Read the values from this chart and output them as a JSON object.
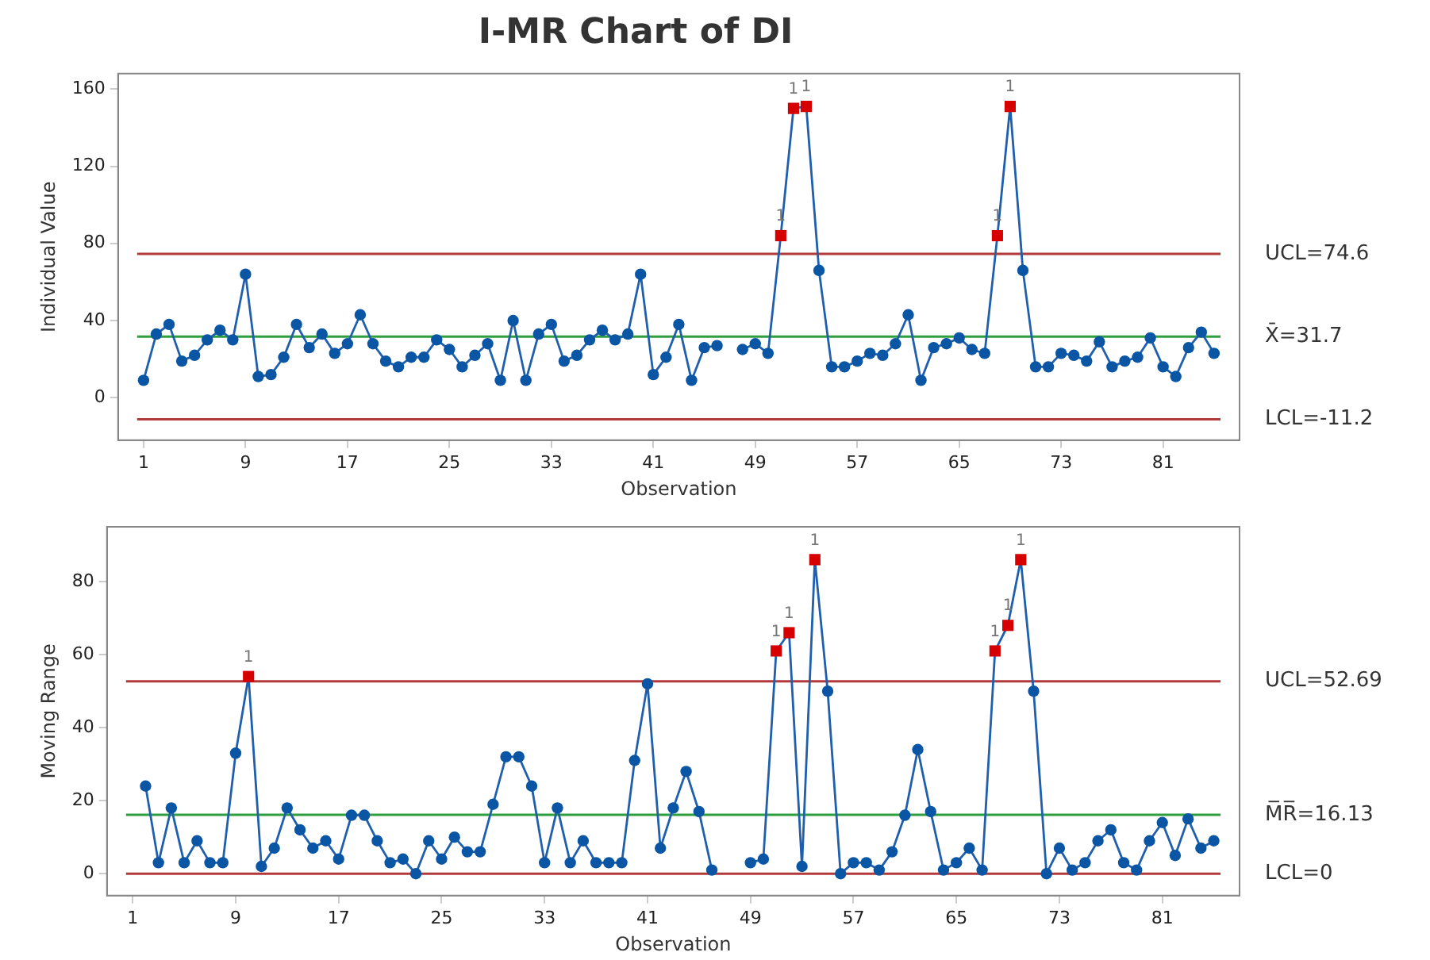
{
  "chart_data": [
    {
      "type": "line",
      "title": "I-MR Chart of DI",
      "xlabel": "Observation",
      "ylabel": "Individual Value",
      "x": [
        1,
        2,
        3,
        4,
        5,
        6,
        7,
        8,
        9,
        10,
        11,
        12,
        13,
        14,
        15,
        16,
        17,
        18,
        19,
        20,
        21,
        22,
        23,
        24,
        25,
        26,
        27,
        28,
        29,
        30,
        31,
        32,
        33,
        34,
        35,
        36,
        37,
        38,
        39,
        40,
        41,
        42,
        43,
        44,
        45,
        46,
        47,
        48,
        49,
        50,
        51,
        52,
        53,
        54,
        55,
        56,
        57,
        58,
        59,
        60,
        61,
        62,
        63,
        64,
        65,
        66,
        67,
        68,
        69,
        70,
        71,
        72,
        73,
        74,
        75,
        76,
        77,
        78,
        79,
        80,
        81,
        82,
        83,
        84,
        85
      ],
      "series": [
        {
          "type": "line",
          "color": "#1f5fad",
          "marker": "none",
          "line_style": "solid",
          "values": [
            9,
            33,
            38,
            19,
            22,
            30,
            35,
            30,
            64,
            11,
            12,
            21,
            38,
            26,
            33,
            23,
            28,
            43,
            28,
            19,
            16,
            21,
            21,
            30,
            25,
            16,
            22,
            28,
            9,
            40,
            9,
            33,
            38,
            19,
            22,
            30,
            35,
            30,
            33,
            64,
            12,
            21,
            38,
            9,
            26,
            27,
            null,
            25,
            28,
            23,
            84,
            150,
            151,
            66,
            16,
            16,
            19,
            23,
            22,
            28,
            43,
            9,
            26,
            28,
            31,
            25,
            23,
            84,
            151,
            66,
            16,
            16,
            23,
            22,
            19,
            29,
            16,
            19,
            21,
            31,
            16,
            11,
            26,
            34,
            23
          ]
        },
        {
          "type": "scatter",
          "color": "#0b56a4",
          "marker": "circle",
          "x": [
            1,
            2,
            3,
            4,
            5,
            6,
            7,
            8,
            9,
            10,
            11,
            12,
            13,
            14,
            15,
            16,
            17,
            18,
            19,
            20,
            21,
            22,
            23,
            24,
            25,
            26,
            27,
            28,
            29,
            30,
            31,
            32,
            33,
            34,
            35,
            36,
            37,
            38,
            39,
            40,
            41,
            42,
            43,
            44,
            45,
            46,
            48,
            49,
            50,
            54,
            55,
            56,
            57,
            58,
            59,
            60,
            61,
            62,
            63,
            64,
            65,
            66,
            67,
            70,
            71,
            72,
            73,
            74,
            75,
            76,
            77,
            78,
            79,
            80,
            81,
            82,
            83,
            84,
            85
          ],
          "values": [
            9,
            33,
            38,
            19,
            22,
            30,
            35,
            30,
            64,
            11,
            12,
            21,
            38,
            26,
            33,
            23,
            28,
            43,
            28,
            19,
            16,
            21,
            21,
            30,
            25,
            16,
            22,
            28,
            9,
            40,
            9,
            33,
            38,
            19,
            22,
            30,
            35,
            30,
            33,
            64,
            12,
            21,
            38,
            9,
            26,
            27,
            25,
            28,
            23,
            66,
            16,
            16,
            19,
            23,
            22,
            28,
            43,
            9,
            26,
            28,
            31,
            25,
            23,
            66,
            16,
            16,
            23,
            22,
            19,
            29,
            16,
            19,
            21,
            31,
            16,
            11,
            26,
            34,
            23
          ]
        },
        {
          "type": "scatter",
          "color": "#d60000",
          "marker": "square",
          "x": [
            51,
            52,
            53,
            68,
            69
          ],
          "values": [
            84,
            150,
            151,
            84,
            151
          ]
        }
      ],
      "xlim": [
        -1,
        87
      ],
      "xticks": [
        1,
        9,
        17,
        25,
        33,
        41,
        49,
        57,
        65,
        73,
        81
      ],
      "ylim": [
        -22,
        168
      ],
      "yticks": [
        0,
        40,
        80,
        120,
        160
      ],
      "ref_lines": [
        {
          "axis": "y",
          "value": 74.6,
          "label": "UCL=74.6",
          "color": "#b33a3a"
        },
        {
          "axis": "y",
          "value": 31.7,
          "label": "X̄=31.7",
          "color": "#2e9e3e"
        },
        {
          "axis": "y",
          "value": -11.2,
          "label": "LCL=-11.2",
          "color": "#b33a3a"
        }
      ],
      "annotations": [
        {
          "text": "1",
          "x": 51,
          "y": 84
        },
        {
          "text": "1",
          "x": 52,
          "y": 150
        },
        {
          "text": "1",
          "x": 53,
          "y": 151
        },
        {
          "text": "1",
          "x": 68,
          "y": 84
        },
        {
          "text": "1",
          "x": 69,
          "y": 151
        }
      ],
      "grid": false,
      "legend": false
    },
    {
      "type": "line",
      "xlabel": "Observation",
      "ylabel": "Moving Range",
      "x": [
        2,
        3,
        4,
        5,
        6,
        7,
        8,
        9,
        10,
        11,
        12,
        13,
        14,
        15,
        16,
        17,
        18,
        19,
        20,
        21,
        22,
        23,
        24,
        25,
        26,
        27,
        28,
        29,
        30,
        31,
        32,
        33,
        34,
        35,
        36,
        37,
        38,
        39,
        40,
        41,
        42,
        43,
        44,
        45,
        46,
        47,
        48,
        49,
        50,
        51,
        52,
        53,
        54,
        55,
        56,
        57,
        58,
        59,
        60,
        61,
        62,
        63,
        64,
        65,
        66,
        67,
        68,
        69,
        70,
        71,
        72,
        73,
        74,
        75,
        76,
        77,
        78,
        79,
        80,
        81,
        82,
        83,
        84,
        85
      ],
      "series": [
        {
          "type": "line",
          "color": "#1f5fad",
          "marker": "none",
          "line_style": "solid",
          "values": [
            24,
            3,
            18,
            3,
            9,
            3,
            3,
            33,
            54,
            2,
            7,
            18,
            12,
            7,
            9,
            4,
            16,
            16,
            9,
            3,
            4,
            0,
            9,
            4,
            10,
            6,
            6,
            19,
            32,
            32,
            24,
            3,
            18,
            3,
            9,
            3,
            3,
            3,
            31,
            52,
            7,
            18,
            28,
            17,
            1,
            null,
            null,
            3,
            4,
            61,
            66,
            2,
            86,
            50,
            0,
            3,
            3,
            1,
            6,
            16,
            34,
            17,
            1,
            3,
            7,
            1,
            61,
            68,
            86,
            50,
            0,
            7,
            1,
            3,
            9,
            12,
            3,
            1,
            9,
            14,
            5,
            15,
            7,
            9
          ]
        },
        {
          "type": "scatter",
          "color": "#0b56a4",
          "marker": "circle",
          "x": [
            2,
            3,
            4,
            5,
            6,
            7,
            8,
            9,
            11,
            12,
            13,
            14,
            15,
            16,
            17,
            18,
            19,
            20,
            21,
            22,
            23,
            24,
            25,
            26,
            27,
            28,
            29,
            30,
            31,
            32,
            33,
            34,
            35,
            36,
            37,
            38,
            39,
            40,
            41,
            42,
            43,
            44,
            45,
            46,
            49,
            50,
            53,
            55,
            56,
            57,
            58,
            59,
            60,
            61,
            62,
            63,
            64,
            65,
            66,
            67,
            71,
            72,
            73,
            74,
            75,
            76,
            77,
            78,
            79,
            80,
            81,
            82,
            83,
            84,
            85
          ],
          "values": [
            24,
            3,
            18,
            3,
            9,
            3,
            3,
            33,
            2,
            7,
            18,
            12,
            7,
            9,
            4,
            16,
            16,
            9,
            3,
            4,
            0,
            9,
            4,
            10,
            6,
            6,
            19,
            32,
            32,
            24,
            3,
            18,
            3,
            9,
            3,
            3,
            3,
            31,
            52,
            7,
            18,
            28,
            17,
            1,
            3,
            4,
            2,
            50,
            0,
            3,
            3,
            1,
            6,
            16,
            34,
            17,
            1,
            3,
            7,
            1,
            50,
            0,
            7,
            1,
            3,
            9,
            12,
            3,
            1,
            9,
            14,
            5,
            15,
            7,
            9
          ]
        },
        {
          "type": "scatter",
          "color": "#d60000",
          "marker": "square",
          "x": [
            10,
            51,
            52,
            54,
            68,
            69,
            70
          ],
          "values": [
            54,
            61,
            66,
            86,
            61,
            68,
            86
          ]
        }
      ],
      "xlim": [
        -1,
        87
      ],
      "xticks": [
        1,
        9,
        17,
        25,
        33,
        41,
        49,
        57,
        65,
        73,
        81
      ],
      "ylim": [
        -6,
        95
      ],
      "yticks": [
        0,
        20,
        40,
        60,
        80
      ],
      "ref_lines": [
        {
          "axis": "y",
          "value": 52.69,
          "label": "UCL=52.69",
          "color": "#b33a3a"
        },
        {
          "axis": "y",
          "value": 16.13,
          "label": "M̅R̅=16.13",
          "color": "#2e9e3e"
        },
        {
          "axis": "y",
          "value": 0,
          "label": "LCL=0",
          "color": "#b33a3a"
        }
      ],
      "annotations": [
        {
          "text": "1",
          "x": 10,
          "y": 54
        },
        {
          "text": "1",
          "x": 51,
          "y": 61
        },
        {
          "text": "1",
          "x": 52,
          "y": 66
        },
        {
          "text": "1",
          "x": 54,
          "y": 86
        },
        {
          "text": "1",
          "x": 68,
          "y": 61
        },
        {
          "text": "1",
          "x": 69,
          "y": 68
        },
        {
          "text": "1",
          "x": 70,
          "y": 86
        }
      ],
      "grid": false,
      "legend": false
    }
  ]
}
